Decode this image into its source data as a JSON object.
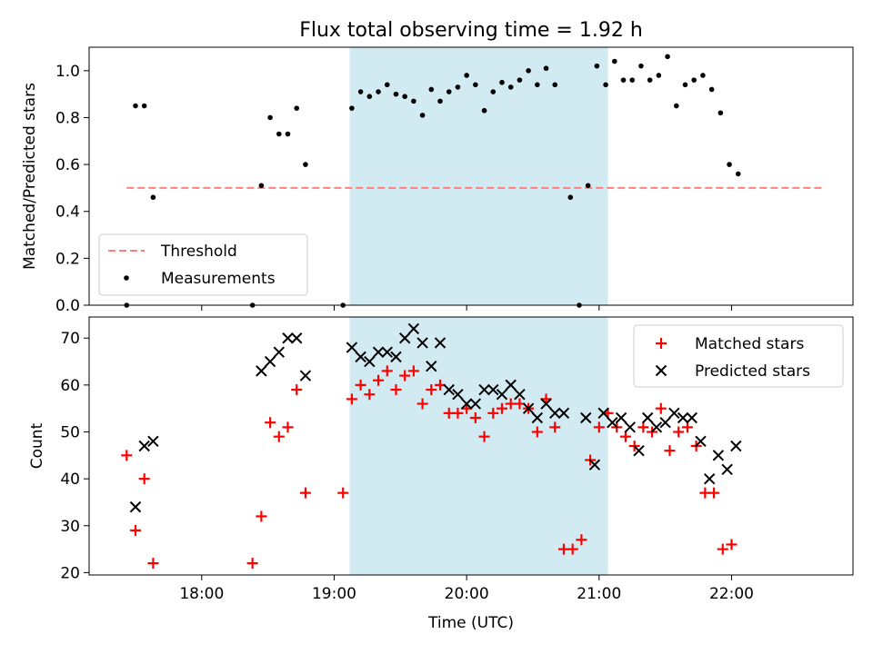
{
  "figure": {
    "title": "Flux total observing time = 1.92 h"
  },
  "shaded_region": {
    "start": "19:07",
    "end": "21:04",
    "color": "#add8e6"
  },
  "chart_data": [
    {
      "type": "scatter",
      "panel": "top",
      "ylabel": "Matched/Predicted stars",
      "xlim": [
        "17:09",
        "22:55"
      ],
      "ylim": [
        0.0,
        1.1
      ],
      "yticks": [
        0.0,
        0.2,
        0.4,
        0.6,
        0.8,
        1.0
      ],
      "legend": {
        "placement": "lower-left"
      },
      "threshold": {
        "name": "Threshold",
        "value": 0.5,
        "start": "17:26",
        "end": "22:42",
        "color": "#ff7f7f",
        "style": "dashed"
      },
      "series": [
        {
          "name": "Measurements",
          "marker": "dot",
          "color": "#000000",
          "points": [
            [
              "17:26",
              0.0
            ],
            [
              "17:30",
              0.85
            ],
            [
              "17:34",
              0.85
            ],
            [
              "17:38",
              0.46
            ],
            [
              "18:23",
              0.0
            ],
            [
              "18:27",
              0.51
            ],
            [
              "18:31",
              0.8
            ],
            [
              "18:35",
              0.73
            ],
            [
              "18:39",
              0.73
            ],
            [
              "18:43",
              0.84
            ],
            [
              "18:47",
              0.6
            ],
            [
              "19:04",
              0.0
            ],
            [
              "19:08",
              0.84
            ],
            [
              "19:12",
              0.91
            ],
            [
              "19:16",
              0.89
            ],
            [
              "19:20",
              0.91
            ],
            [
              "19:24",
              0.94
            ],
            [
              "19:28",
              0.9
            ],
            [
              "19:32",
              0.89
            ],
            [
              "19:36",
              0.87
            ],
            [
              "19:40",
              0.81
            ],
            [
              "19:44",
              0.92
            ],
            [
              "19:48",
              0.87
            ],
            [
              "19:52",
              0.91
            ],
            [
              "19:56",
              0.93
            ],
            [
              "20:00",
              0.98
            ],
            [
              "20:04",
              0.94
            ],
            [
              "20:08",
              0.83
            ],
            [
              "20:12",
              0.91
            ],
            [
              "20:16",
              0.95
            ],
            [
              "20:20",
              0.93
            ],
            [
              "20:24",
              0.96
            ],
            [
              "20:28",
              1.0
            ],
            [
              "20:32",
              0.94
            ],
            [
              "20:36",
              1.01
            ],
            [
              "20:40",
              0.94
            ],
            [
              "20:47",
              0.46
            ],
            [
              "20:51",
              0.0
            ],
            [
              "20:55",
              0.51
            ],
            [
              "20:59",
              1.02
            ],
            [
              "21:03",
              0.94
            ],
            [
              "21:07",
              1.04
            ],
            [
              "21:11",
              0.96
            ],
            [
              "21:15",
              0.96
            ],
            [
              "21:19",
              1.02
            ],
            [
              "21:23",
              0.96
            ],
            [
              "21:27",
              0.98
            ],
            [
              "21:31",
              1.06
            ],
            [
              "21:35",
              0.85
            ],
            [
              "21:39",
              0.94
            ],
            [
              "21:43",
              0.96
            ],
            [
              "21:47",
              0.98
            ],
            [
              "21:51",
              0.92
            ],
            [
              "21:55",
              0.82
            ],
            [
              "21:59",
              0.6
            ],
            [
              "22:03",
              0.56
            ]
          ]
        }
      ]
    },
    {
      "type": "scatter",
      "panel": "bottom",
      "xlabel": "Time (UTC)",
      "ylabel": "Count",
      "xlim": [
        "17:09",
        "22:55"
      ],
      "ylim": [
        19.5,
        74.5
      ],
      "yticks": [
        20,
        30,
        40,
        50,
        60,
        70
      ],
      "xticks": [
        "18:00",
        "19:00",
        "20:00",
        "21:00",
        "22:00"
      ],
      "legend": {
        "placement": "upper-right"
      },
      "series": [
        {
          "name": "Matched stars",
          "marker": "plus",
          "color": "#ff0000",
          "points": [
            [
              "17:26",
              45
            ],
            [
              "17:30",
              29
            ],
            [
              "17:34",
              40
            ],
            [
              "17:38",
              22
            ],
            [
              "18:23",
              22
            ],
            [
              "18:27",
              32
            ],
            [
              "18:31",
              52
            ],
            [
              "18:35",
              49
            ],
            [
              "18:39",
              51
            ],
            [
              "18:43",
              59
            ],
            [
              "18:47",
              37
            ],
            [
              "19:04",
              37
            ],
            [
              "19:08",
              57
            ],
            [
              "19:12",
              60
            ],
            [
              "19:16",
              58
            ],
            [
              "19:20",
              61
            ],
            [
              "19:24",
              63
            ],
            [
              "19:28",
              59
            ],
            [
              "19:32",
              62
            ],
            [
              "19:36",
              63
            ],
            [
              "19:40",
              56
            ],
            [
              "19:44",
              59
            ],
            [
              "19:48",
              60
            ],
            [
              "19:52",
              54
            ],
            [
              "19:56",
              54
            ],
            [
              "20:00",
              55
            ],
            [
              "20:04",
              53
            ],
            [
              "20:08",
              49
            ],
            [
              "20:12",
              54
            ],
            [
              "20:16",
              55
            ],
            [
              "20:20",
              56
            ],
            [
              "20:24",
              56
            ],
            [
              "20:28",
              55
            ],
            [
              "20:32",
              50
            ],
            [
              "20:36",
              57
            ],
            [
              "20:40",
              51
            ],
            [
              "20:44",
              25
            ],
            [
              "20:48",
              25
            ],
            [
              "20:52",
              27
            ],
            [
              "20:56",
              44
            ],
            [
              "21:00",
              51
            ],
            [
              "21:04",
              54
            ],
            [
              "21:08",
              51
            ],
            [
              "21:12",
              49
            ],
            [
              "21:16",
              47
            ],
            [
              "21:20",
              51
            ],
            [
              "21:24",
              50
            ],
            [
              "21:28",
              55
            ],
            [
              "21:32",
              46
            ],
            [
              "21:36",
              50
            ],
            [
              "21:40",
              51
            ],
            [
              "21:44",
              47
            ],
            [
              "21:48",
              37
            ],
            [
              "21:52",
              37
            ],
            [
              "21:56",
              25
            ],
            [
              "22:00",
              26
            ]
          ]
        },
        {
          "name": "Predicted stars",
          "marker": "x",
          "color": "#000000",
          "points": [
            [
              "17:30",
              34
            ],
            [
              "17:34",
              47
            ],
            [
              "17:38",
              48
            ],
            [
              "18:27",
              63
            ],
            [
              "18:31",
              65
            ],
            [
              "18:35",
              67
            ],
            [
              "18:39",
              70
            ],
            [
              "18:43",
              70
            ],
            [
              "18:47",
              62
            ],
            [
              "19:08",
              68
            ],
            [
              "19:12",
              66
            ],
            [
              "19:16",
              65
            ],
            [
              "19:20",
              67
            ],
            [
              "19:24",
              67
            ],
            [
              "19:28",
              66
            ],
            [
              "19:32",
              70
            ],
            [
              "19:36",
              72
            ],
            [
              "19:40",
              69
            ],
            [
              "19:44",
              64
            ],
            [
              "19:48",
              69
            ],
            [
              "19:52",
              59
            ],
            [
              "19:56",
              58
            ],
            [
              "20:00",
              56
            ],
            [
              "20:04",
              56
            ],
            [
              "20:08",
              59
            ],
            [
              "20:12",
              59
            ],
            [
              "20:16",
              58
            ],
            [
              "20:20",
              60
            ],
            [
              "20:24",
              58
            ],
            [
              "20:28",
              55
            ],
            [
              "20:32",
              53
            ],
            [
              "20:36",
              56
            ],
            [
              "20:40",
              54
            ],
            [
              "20:44",
              54
            ],
            [
              "20:54",
              53
            ],
            [
              "20:58",
              43
            ],
            [
              "21:02",
              54
            ],
            [
              "21:06",
              52
            ],
            [
              "21:10",
              53
            ],
            [
              "21:14",
              51
            ],
            [
              "21:18",
              46
            ],
            [
              "21:22",
              53
            ],
            [
              "21:26",
              51
            ],
            [
              "21:30",
              52
            ],
            [
              "21:34",
              54
            ],
            [
              "21:38",
              53
            ],
            [
              "21:42",
              53
            ],
            [
              "21:46",
              48
            ],
            [
              "21:50",
              40
            ],
            [
              "21:54",
              45
            ],
            [
              "21:58",
              42
            ],
            [
              "22:02",
              47
            ]
          ]
        }
      ]
    }
  ]
}
